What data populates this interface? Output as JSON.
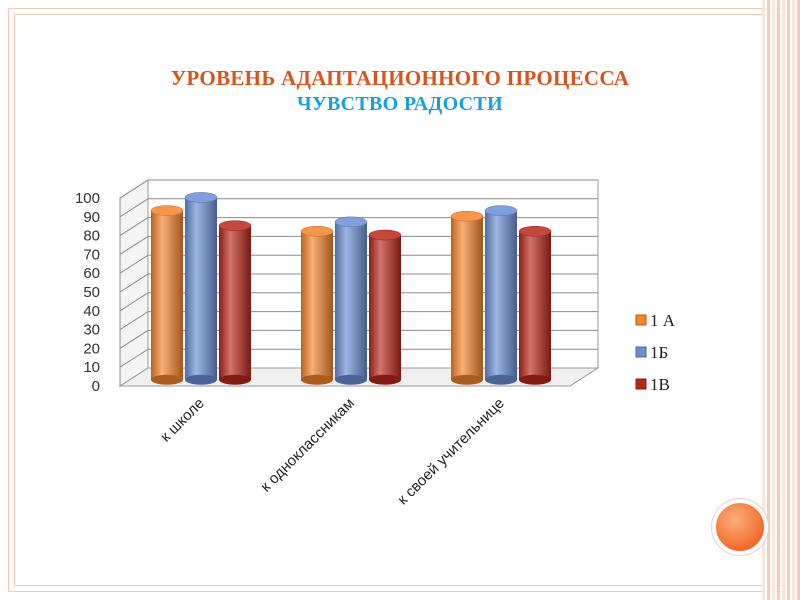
{
  "slide": {
    "title_line1": "УРОВЕНЬ АДАПТАЦИОННОГО ПРОЦЕССА",
    "title_line2": "ЧУВСТВО РАДОСТИ"
  },
  "chart_data": {
    "type": "bar",
    "categories": [
      "к школе",
      "к одноклассникам",
      "к своей учительнице"
    ],
    "series": [
      {
        "name": "1 А",
        "values": [
          89,
          78,
          86
        ],
        "color": "#f5842a"
      },
      {
        "name": "1Б",
        "values": [
          96,
          83,
          89
        ],
        "color": "#6b8ed6"
      },
      {
        "name": "1В",
        "values": [
          81,
          76,
          78
        ],
        "color": "#b9281b"
      }
    ],
    "yticks": [
      0,
      10,
      20,
      30,
      40,
      50,
      60,
      70,
      80,
      90,
      100
    ],
    "ylim": [
      0,
      100
    ],
    "grid": true,
    "legend": "right"
  }
}
